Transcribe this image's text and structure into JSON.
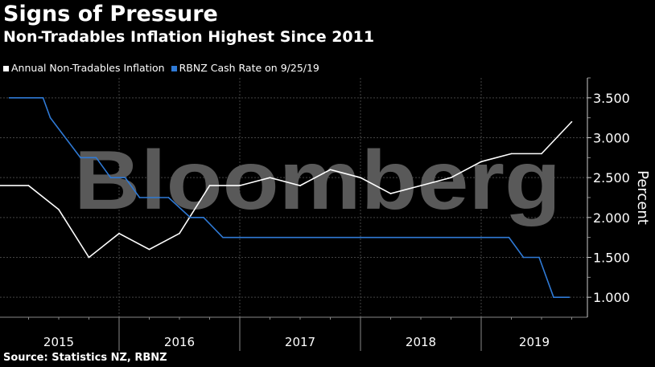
{
  "header": {
    "title": "Signs of Pressure",
    "subtitle": "Non-Tradables Inflation Highest Since 2011"
  },
  "watermark": "Bloomberg",
  "source": "Source: Statistics NZ, RBNZ",
  "colors": {
    "inflation": "#ffffff",
    "cash_rate": "#2f7ad6",
    "grid": "#444444",
    "watermark": "#595959"
  },
  "chart_data": {
    "type": "line",
    "title": "Non-Tradables Inflation Highest Since 2011",
    "ylabel": "Percent",
    "xlabel": "",
    "xlim": [
      2015.0,
      2019.88
    ],
    "ylim": [
      0.75,
      3.75
    ],
    "yticks": [
      "1.000",
      "1.500",
      "2.000",
      "2.500",
      "3.000",
      "3.500"
    ],
    "ytick_values": [
      1.0,
      1.5,
      2.0,
      2.5,
      3.0,
      3.5
    ],
    "xticks": [
      "2015",
      "2016",
      "2017",
      "2018",
      "2019"
    ],
    "grid": true,
    "legend_position": "top-left",
    "series": [
      {
        "name": "Annual Non-Tradables Inflation",
        "color": "#ffffff",
        "x": [
          2015.0,
          2015.25,
          2015.5,
          2015.75,
          2016.0,
          2016.25,
          2016.5,
          2016.75,
          2017.0,
          2017.25,
          2017.5,
          2017.75,
          2018.0,
          2018.25,
          2018.5,
          2018.75,
          2019.0,
          2019.25,
          2019.5,
          2019.75
        ],
        "values": [
          2.4,
          2.4,
          2.1,
          1.5,
          1.8,
          1.6,
          1.8,
          2.4,
          2.4,
          2.5,
          2.4,
          2.6,
          2.5,
          2.3,
          2.4,
          2.5,
          2.7,
          2.8,
          2.8,
          3.2
        ]
      },
      {
        "name": "RBNZ Cash Rate on 9/25/19",
        "color": "#2f7ad6",
        "x": [
          2015.09,
          2015.37,
          2015.43,
          2015.68,
          2015.81,
          2015.93,
          2016.05,
          2016.17,
          2016.41,
          2016.59,
          2016.7,
          2016.86,
          2019.23,
          2019.35,
          2019.48,
          2019.6,
          2019.73
        ],
        "values": [
          3.5,
          3.5,
          3.25,
          2.75,
          2.75,
          2.5,
          2.5,
          2.25,
          2.25,
          2.0,
          2.0,
          1.75,
          1.75,
          1.5,
          1.5,
          1.0,
          1.0
        ]
      }
    ]
  }
}
